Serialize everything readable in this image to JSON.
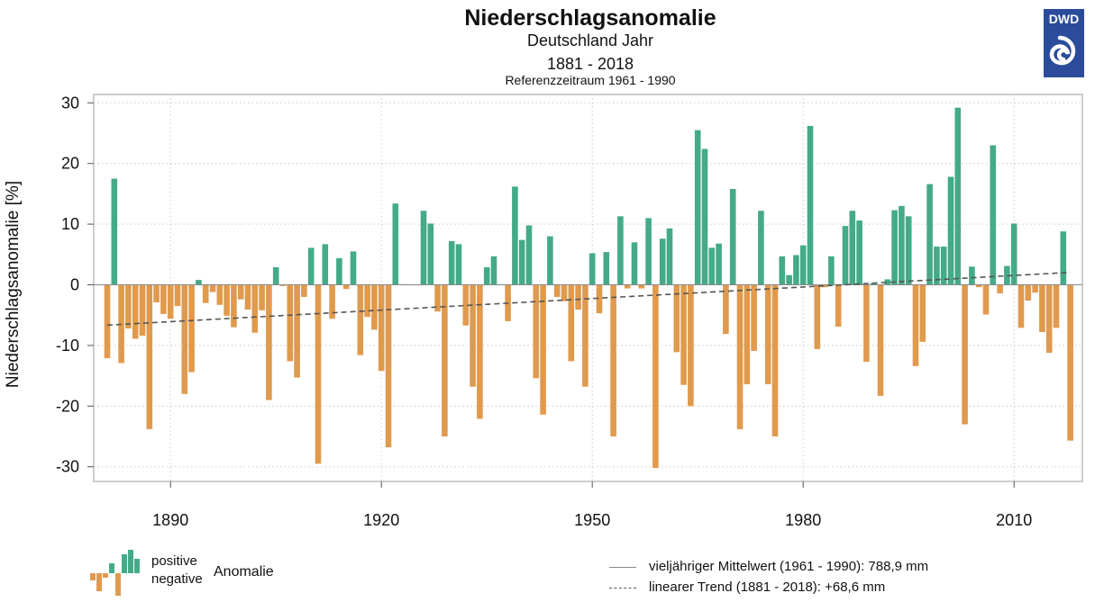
{
  "header": {
    "title": "Niederschlagsanomalie",
    "subtitle1": "Deutschland Jahr",
    "subtitle2": "1881 - 2018",
    "subtitle3": "Referenzzeitraum 1961 - 1990",
    "logo_text": "DWD"
  },
  "colors": {
    "positive": "#44aa88",
    "negative": "#e09a4d",
    "logo_blue": "#2b4b9b",
    "grid": "#cccccc"
  },
  "legend": {
    "positive_label": "positive",
    "negative_label": "negative",
    "anomaly_label": "Anomalie",
    "mean_label": "vieljähriger Mittelwert (1961 - 1990): 788,9 mm",
    "trend_label": "linearer Trend (1881 - 2018): +68,6 mm"
  },
  "chart_data": {
    "type": "bar",
    "title": "Niederschlagsanomalie",
    "xlabel": "",
    "ylabel": "Niederschlagsanomalie [%]",
    "ylim": [
      -30,
      30
    ],
    "xlim": [
      1881,
      2018
    ],
    "grid": true,
    "yticks": [
      30,
      20,
      10,
      0,
      -10,
      -20,
      -30
    ],
    "xticks": [
      1890,
      1920,
      1950,
      1980,
      2010
    ],
    "trend": {
      "start_year": 1881,
      "start_value": -6.65,
      "end_year": 2018,
      "end_value": 2.05
    },
    "start_year": 1881,
    "values": [
      -12.1,
      17.5,
      -12.9,
      -7.2,
      -8.9,
      -8.4,
      -23.8,
      -2.9,
      -4.8,
      -5.6,
      -3.5,
      -18.0,
      -14.4,
      0.8,
      -3.0,
      -1.2,
      -3.3,
      -5.1,
      -7.0,
      -2.4,
      -4.1,
      -7.9,
      -4.2,
      -19.0,
      2.9,
      -0.2,
      -12.6,
      -15.3,
      -2.0,
      6.1,
      -29.5,
      6.7,
      -5.6,
      4.4,
      -0.7,
      5.5,
      -11.6,
      -5.3,
      -7.4,
      -14.2,
      -26.8,
      13.4,
      0.1,
      0.0,
      -0.1,
      12.2,
      10.1,
      -4.4,
      -25.0,
      7.2,
      6.7,
      -6.7,
      -16.8,
      -22.1,
      2.9,
      4.7,
      0.1,
      -6.0,
      16.2,
      7.4,
      9.8,
      -15.4,
      -21.4,
      8.0,
      -2.0,
      -2.7,
      -12.6,
      -4.1,
      -16.8,
      5.2,
      -4.7,
      5.4,
      -25.0,
      11.3,
      -0.6,
      7.0,
      -0.6,
      11.0,
      -30.2,
      7.6,
      9.3,
      -11.1,
      -16.5,
      -20.0,
      25.5,
      22.4,
      6.1,
      6.8,
      -8.1,
      15.8,
      -23.8,
      -16.4,
      -10.9,
      12.2,
      -16.4,
      -25.0,
      4.7,
      1.6,
      4.9,
      6.5,
      26.2,
      -10.6,
      -0.4,
      4.7,
      -6.9,
      9.7,
      12.2,
      10.6,
      -12.7,
      0.3,
      -18.3,
      0.9,
      12.3,
      13.0,
      11.3,
      -13.4,
      -9.4,
      16.6,
      6.3,
      6.3,
      17.8,
      29.2,
      -23.0,
      3.0,
      -0.4,
      -4.9,
      23.0,
      -1.4,
      3.1,
      10.1,
      -7.1,
      -2.6,
      -1.3,
      -7.8,
      -11.2,
      -7.1,
      8.8,
      -25.7
    ]
  }
}
